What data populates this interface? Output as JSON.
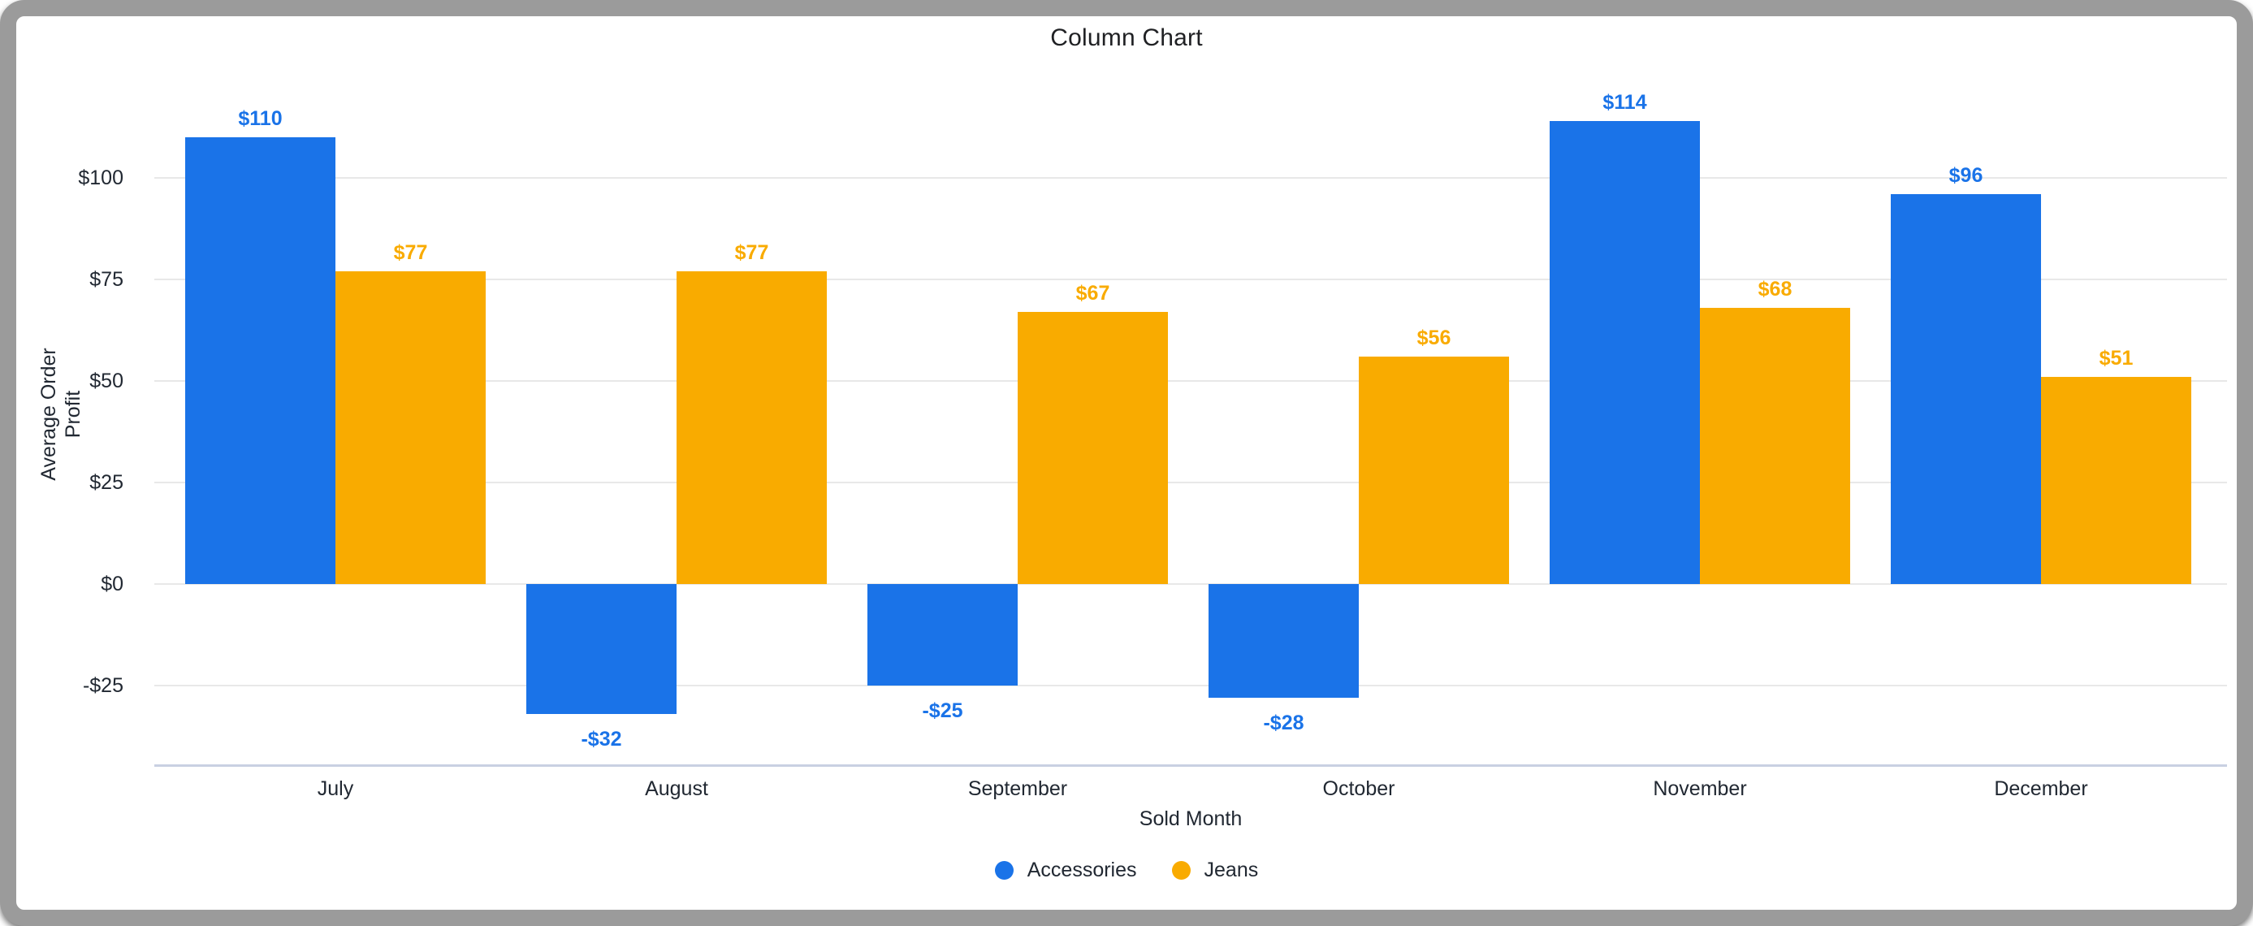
{
  "chart_data": {
    "type": "bar",
    "title": "Column Chart",
    "xlabel": "Sold Month",
    "ylabel": "Average Order Profit",
    "categories": [
      "July",
      "August",
      "September",
      "October",
      "November",
      "December"
    ],
    "series": [
      {
        "name": "Accessories",
        "color": "#1a73e8",
        "values": [
          110,
          -32,
          -25,
          -28,
          114,
          96
        ],
        "labels": [
          "$110",
          "-$32",
          "-$25",
          "-$28",
          "$114",
          "$96"
        ]
      },
      {
        "name": "Jeans",
        "color": "#f9ab00",
        "values": [
          77,
          77,
          67,
          56,
          68,
          51
        ],
        "labels": [
          "$77",
          "$77",
          "$67",
          "$56",
          "$68",
          "$51"
        ]
      }
    ],
    "y_ticks": [
      {
        "label": "$100",
        "value": 100
      },
      {
        "label": "$75",
        "value": 75
      },
      {
        "label": "$50",
        "value": 50
      },
      {
        "label": "$25",
        "value": 25
      },
      {
        "label": "$0",
        "value": 0
      },
      {
        "label": "-$25",
        "value": -25
      }
    ],
    "ylim": [
      -44.4,
      127.8
    ],
    "grid": true,
    "legend_position": "bottom"
  }
}
